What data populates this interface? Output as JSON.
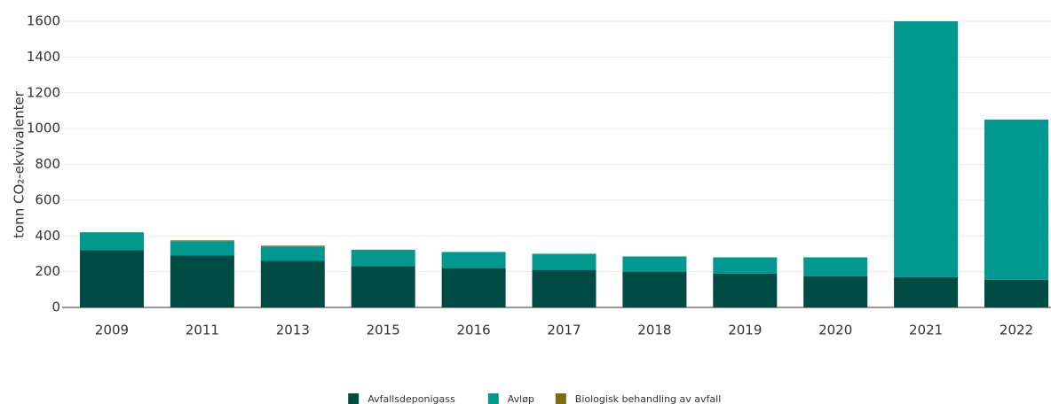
{
  "chart_data": {
    "type": "stacked_bar",
    "y_axis_label": "tonn CO₂-ekvivalenter",
    "categories": [
      "2009",
      "2011",
      "2013",
      "2015",
      "2016",
      "2017",
      "2018",
      "2019",
      "2020",
      "2021",
      "2022"
    ],
    "series": [
      {
        "name": "Avfallsdeponigass",
        "color": "#004c45",
        "values": [
          320,
          290,
          260,
          230,
          220,
          210,
          200,
          190,
          175,
          170,
          155
        ]
      },
      {
        "name": "Avløp",
        "color": "#00988f",
        "values": [
          100,
          80,
          80,
          90,
          90,
          90,
          85,
          90,
          105,
          1430,
          895
        ]
      },
      {
        "name": "Biologisk behandling av avfall",
        "color": "#7d6a14",
        "values": [
          0,
          5,
          5,
          3,
          0,
          0,
          0,
          0,
          0,
          0,
          0
        ]
      }
    ],
    "ylim": [
      0,
      1600
    ],
    "yticks": [
      0,
      200,
      400,
      600,
      800,
      1000,
      1200,
      1400,
      1600
    ],
    "grid": true
  }
}
